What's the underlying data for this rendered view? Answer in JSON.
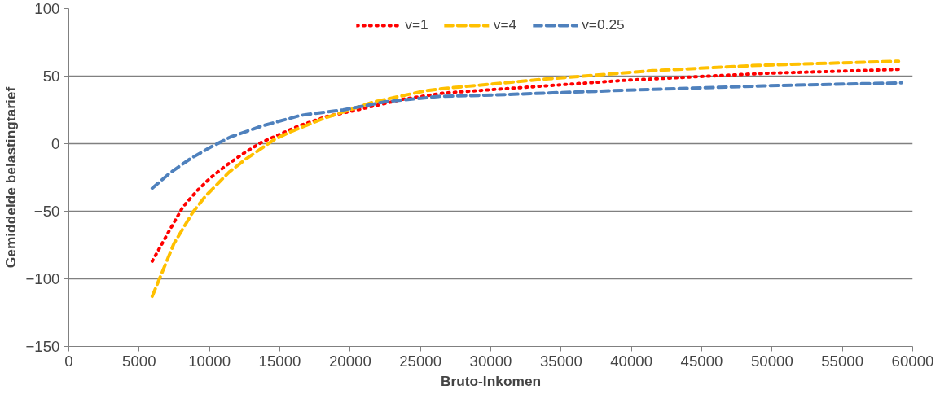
{
  "chart_data": {
    "type": "line",
    "xlabel": "Bruto-Inkomen",
    "ylabel": "Gemiddelde belastingtarief",
    "xlim": [
      0,
      60000
    ],
    "xticks": [
      0,
      5000,
      10000,
      15000,
      20000,
      25000,
      30000,
      35000,
      40000,
      45000,
      50000,
      55000,
      60000
    ],
    "ylim": [
      -150,
      100
    ],
    "yticks": [
      -150,
      -100,
      -50,
      0,
      50,
      100
    ],
    "grid": "y",
    "legend": "top",
    "series": [
      {
        "name": "v=1",
        "color": "#ff0000",
        "line_style": "dotted",
        "x": [
          5930,
          7000,
          8100,
          9100,
          10100,
          11200,
          12450,
          13700,
          15000,
          16300,
          18300,
          20500,
          23800,
          26700,
          30100,
          39700,
          49400,
          59200
        ],
        "values": [
          -87,
          -67,
          -47,
          -35,
          -25,
          -16,
          -7,
          1,
          7,
          13,
          20,
          25,
          33,
          37.5,
          40,
          47,
          52,
          55
        ]
      },
      {
        "name": "v=4",
        "color": "#ffc000",
        "line_style": "dashed",
        "x": [
          5930,
          7470,
          8800,
          9700,
          11400,
          12500,
          14600,
          15800,
          18200,
          21700,
          25300,
          26800,
          34100,
          41500,
          49000,
          59000
        ],
        "values": [
          -113,
          -74,
          -51,
          -39,
          -21,
          -12,
          3,
          9,
          19,
          31,
          39,
          41,
          48,
          54,
          58,
          61
        ]
      },
      {
        "name": "v=0.25",
        "color": "#4f81bd",
        "line_style": "dashed",
        "x": [
          5930,
          7270,
          8660,
          10000,
          11500,
          13700,
          16500,
          19500,
          22500,
          26300,
          30100,
          39700,
          49400,
          59200
        ],
        "values": [
          -33,
          -21,
          -11,
          -3,
          5,
          13,
          21,
          25,
          31,
          35,
          36,
          39.6,
          42.8,
          45
        ]
      }
    ]
  }
}
